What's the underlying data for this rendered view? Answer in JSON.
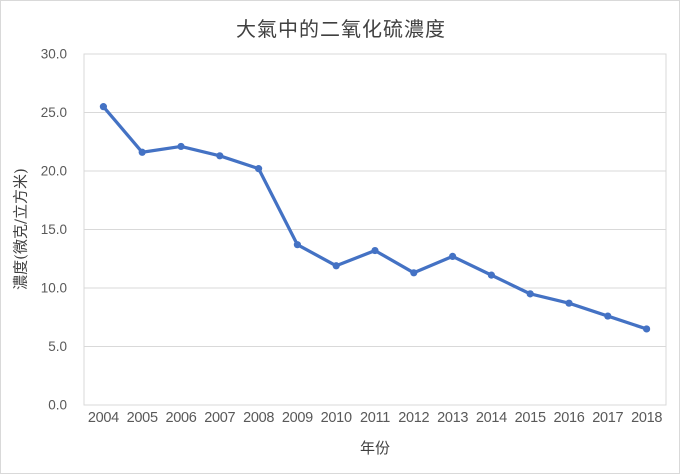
{
  "chart_data": {
    "type": "line",
    "title": "大氣中的二氧化硫濃度",
    "xlabel": "年份",
    "ylabel": "濃度(微克/立方米)",
    "categories": [
      "2004",
      "2005",
      "2006",
      "2007",
      "2008",
      "2009",
      "2010",
      "2011",
      "2012",
      "2013",
      "2014",
      "2015",
      "2016",
      "2017",
      "2018"
    ],
    "values": [
      25.5,
      21.6,
      22.1,
      21.3,
      20.2,
      13.7,
      11.9,
      13.2,
      11.3,
      12.7,
      11.1,
      9.5,
      8.7,
      7.6,
      6.5
    ],
    "ylim": [
      0,
      30
    ],
    "ytick_step": 5,
    "ytick_labels": [
      "0.0",
      "5.0",
      "10.0",
      "15.0",
      "20.0",
      "25.0",
      "30.0"
    ],
    "grid": true,
    "legend_position": "none",
    "colors": {
      "line": "#4472C4",
      "marker": "#4472C4",
      "grid": "#d9d9d9",
      "plot_border": "#d9d9d9",
      "axis_text": "#595959",
      "title_text": "#404040",
      "background": "#ffffff"
    }
  }
}
